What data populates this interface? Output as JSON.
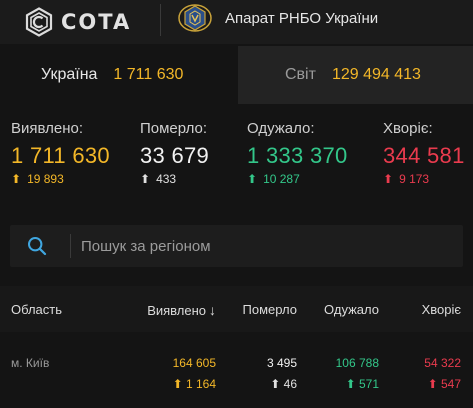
{
  "header": {
    "logo_text": "COTA",
    "org_name": "Апарат РНБО України",
    "logo_icon": "cota-logo-icon",
    "emblem_icon": "nsdc-emblem-icon"
  },
  "tabs": [
    {
      "label": "Україна",
      "value": "1 711 630",
      "active": true
    },
    {
      "label": "Світ",
      "value": "129 494 413",
      "active": false
    }
  ],
  "stats": [
    {
      "label": "Виявлено:",
      "value": "1 711 630",
      "delta": "19 893",
      "color": "#f3b728"
    },
    {
      "label": "Померло:",
      "value": "33 679",
      "delta": "433",
      "color": "#f2f2f2"
    },
    {
      "label": "Одужало:",
      "value": "1 333 370",
      "delta": "10 287",
      "color": "#33c78a"
    },
    {
      "label": "Хворіє:",
      "value": "344 581",
      "delta": "9 173",
      "color": "#ea3b4e"
    }
  ],
  "search": {
    "placeholder": "Пошук за регіоном",
    "value": ""
  },
  "table": {
    "columns": {
      "region": "Область",
      "detected": "Виявлено",
      "died": "Померло",
      "recovered": "Одужало",
      "sick": "Хворіє"
    },
    "rows": [
      {
        "region": "м. Київ",
        "detected": "164 605",
        "detected_delta": "1 164",
        "died": "3 495",
        "died_delta": "46",
        "recovered": "106 788",
        "recovered_delta": "571",
        "sick": "54 322",
        "sick_delta": "547"
      }
    ]
  }
}
